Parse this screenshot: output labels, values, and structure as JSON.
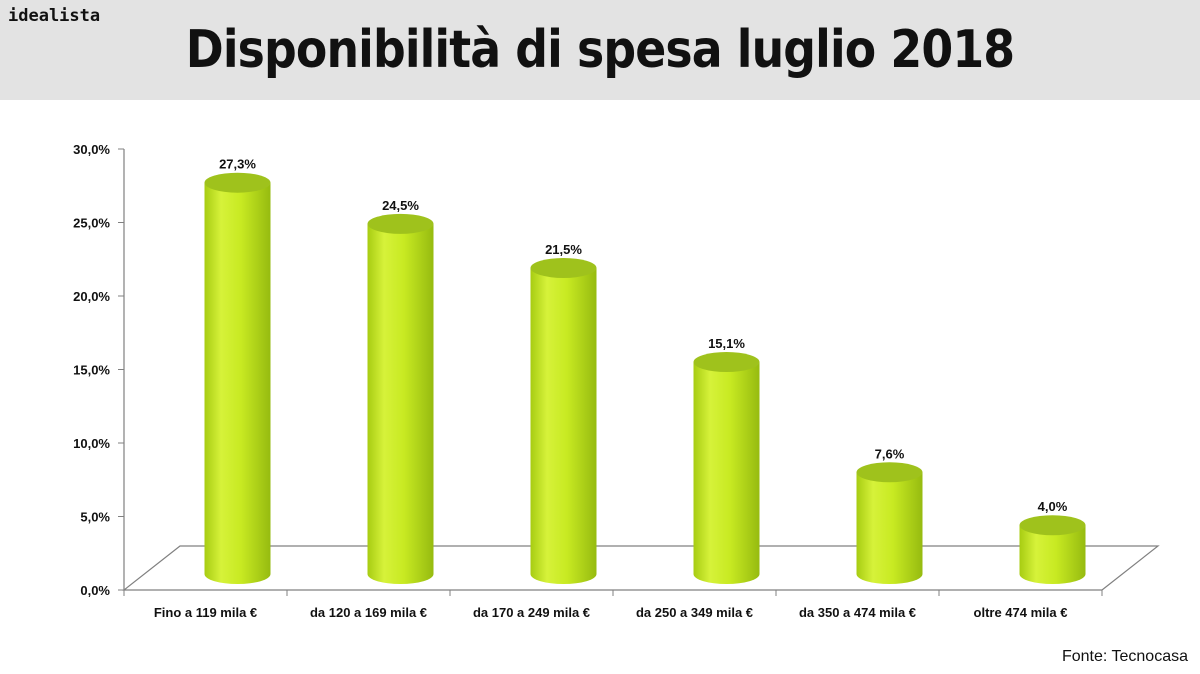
{
  "header": {
    "brand": "idealista",
    "title": "Disponibilità di spesa luglio 2018"
  },
  "source": "Fonte: Tecnocasa",
  "colors": {
    "header_bg": "#e3e3e3",
    "bar": "#c8ea2a",
    "bar_top": "#9fc21c",
    "axis": "#808080"
  },
  "chart_data": {
    "type": "bar",
    "title": "Disponibilità di spesa luglio 2018",
    "categories": [
      "Fino a 119 mila €",
      "da 120 a 169 mila €",
      "da 170 a 249 mila €",
      "da 250 a 349 mila €",
      "da 350 a 474 mila €",
      "oltre 474 mila €"
    ],
    "values": [
      27.3,
      24.5,
      21.5,
      15.1,
      7.6,
      4.0
    ],
    "value_labels": [
      "27,3%",
      "24,5%",
      "21,5%",
      "15,1%",
      "7,6%",
      "4,0%"
    ],
    "yticks": [
      "0,0%",
      "5,0%",
      "10,0%",
      "15,0%",
      "20,0%",
      "25,0%",
      "30,0%"
    ],
    "ylim": [
      0,
      30
    ],
    "xlabel": "",
    "ylabel": "",
    "grid": false,
    "style": "3d-cylinder"
  }
}
